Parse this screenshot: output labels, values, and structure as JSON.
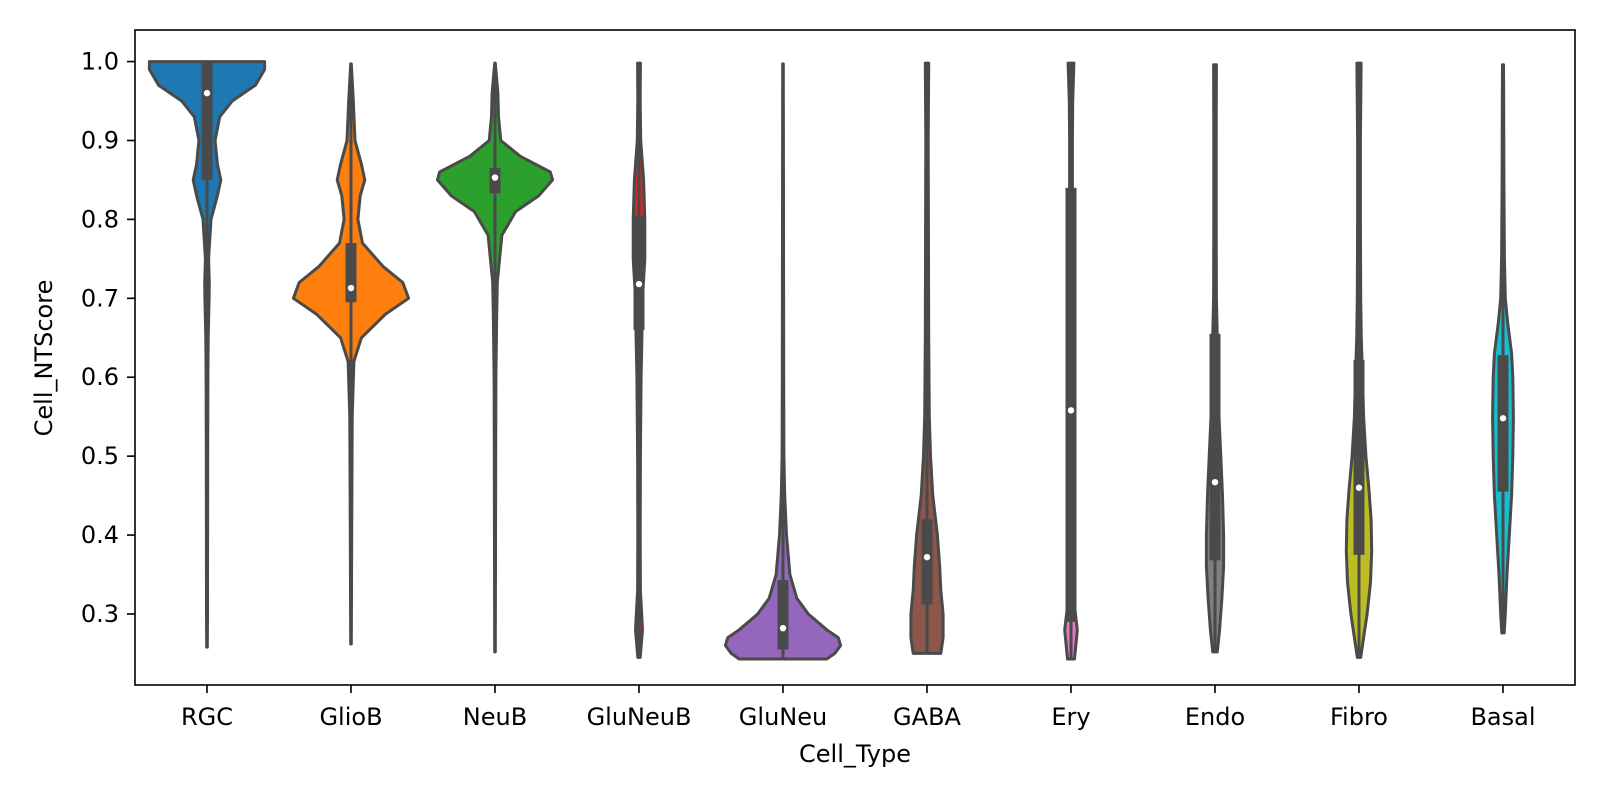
{
  "chart_data": {
    "type": "violin",
    "xlabel": "Cell_Type",
    "ylabel": "Cell_NTScore",
    "ylim": [
      0.21,
      1.04
    ],
    "yticks": [
      "0.3",
      "0.4",
      "0.5",
      "0.6",
      "0.7",
      "0.8",
      "0.9",
      "1.0"
    ],
    "grid": false,
    "edge_color": "#4a4a4a",
    "categories": [
      {
        "name": "RGC",
        "color": "#1f77b4",
        "min": 0.258,
        "max": 1.0,
        "q1": 0.85,
        "median": 0.96,
        "q3": 1.0,
        "density": [
          [
            0.258,
            0.003
          ],
          [
            0.3,
            0.004
          ],
          [
            0.4,
            0.005
          ],
          [
            0.5,
            0.006
          ],
          [
            0.6,
            0.008
          ],
          [
            0.65,
            0.01
          ],
          [
            0.7,
            0.018
          ],
          [
            0.72,
            0.02
          ],
          [
            0.75,
            0.014
          ],
          [
            0.8,
            0.035
          ],
          [
            0.83,
            0.09
          ],
          [
            0.85,
            0.12
          ],
          [
            0.87,
            0.09
          ],
          [
            0.9,
            0.07
          ],
          [
            0.93,
            0.11
          ],
          [
            0.95,
            0.22
          ],
          [
            0.97,
            0.42
          ],
          [
            0.99,
            0.5
          ],
          [
            1.0,
            0.5
          ]
        ]
      },
      {
        "name": "GlioB",
        "color": "#ff7f0e",
        "min": 0.262,
        "max": 0.997,
        "q1": 0.695,
        "median": 0.713,
        "q3": 0.77,
        "density": [
          [
            0.262,
            0.003
          ],
          [
            0.4,
            0.006
          ],
          [
            0.55,
            0.01
          ],
          [
            0.62,
            0.025
          ],
          [
            0.65,
            0.09
          ],
          [
            0.68,
            0.3
          ],
          [
            0.7,
            0.5
          ],
          [
            0.72,
            0.45
          ],
          [
            0.74,
            0.28
          ],
          [
            0.77,
            0.1
          ],
          [
            0.8,
            0.06
          ],
          [
            0.83,
            0.08
          ],
          [
            0.85,
            0.12
          ],
          [
            0.87,
            0.09
          ],
          [
            0.9,
            0.035
          ],
          [
            0.95,
            0.02
          ],
          [
            0.997,
            0.003
          ]
        ]
      },
      {
        "name": "NeuB",
        "color": "#2ca02c",
        "min": 0.252,
        "max": 0.998,
        "q1": 0.833,
        "median": 0.853,
        "q3": 0.865,
        "density": [
          [
            0.252,
            0.003
          ],
          [
            0.5,
            0.006
          ],
          [
            0.6,
            0.008
          ],
          [
            0.68,
            0.015
          ],
          [
            0.72,
            0.02
          ],
          [
            0.78,
            0.06
          ],
          [
            0.81,
            0.18
          ],
          [
            0.83,
            0.38
          ],
          [
            0.85,
            0.5
          ],
          [
            0.86,
            0.48
          ],
          [
            0.88,
            0.22
          ],
          [
            0.9,
            0.05
          ],
          [
            0.93,
            0.03
          ],
          [
            0.96,
            0.025
          ],
          [
            0.998,
            0.003
          ]
        ]
      },
      {
        "name": "GluNeuB",
        "color": "#d62728",
        "min": 0.245,
        "max": 0.998,
        "q1": 0.66,
        "median": 0.718,
        "q3": 0.805,
        "density": [
          [
            0.245,
            0.01
          ],
          [
            0.28,
            0.03
          ],
          [
            0.33,
            0.012
          ],
          [
            0.4,
            0.01
          ],
          [
            0.5,
            0.012
          ],
          [
            0.6,
            0.018
          ],
          [
            0.65,
            0.025
          ],
          [
            0.7,
            0.03
          ],
          [
            0.75,
            0.05
          ],
          [
            0.8,
            0.05
          ],
          [
            0.85,
            0.04
          ],
          [
            0.9,
            0.015
          ],
          [
            0.95,
            0.01
          ],
          [
            0.998,
            0.012
          ]
        ]
      },
      {
        "name": "GluNeu",
        "color": "#9467bd",
        "min": 0.243,
        "max": 0.997,
        "q1": 0.255,
        "median": 0.282,
        "q3": 0.343,
        "density": [
          [
            0.243,
            0.38
          ],
          [
            0.25,
            0.45
          ],
          [
            0.26,
            0.5
          ],
          [
            0.27,
            0.48
          ],
          [
            0.28,
            0.38
          ],
          [
            0.3,
            0.22
          ],
          [
            0.32,
            0.12
          ],
          [
            0.35,
            0.06
          ],
          [
            0.4,
            0.03
          ],
          [
            0.45,
            0.015
          ],
          [
            0.5,
            0.008
          ],
          [
            0.6,
            0.006
          ],
          [
            0.8,
            0.004
          ],
          [
            0.997,
            0.003
          ]
        ]
      },
      {
        "name": "GABA",
        "color": "#8c564b",
        "min": 0.25,
        "max": 0.998,
        "q1": 0.312,
        "median": 0.372,
        "q3": 0.42,
        "density": [
          [
            0.25,
            0.12
          ],
          [
            0.27,
            0.14
          ],
          [
            0.3,
            0.14
          ],
          [
            0.33,
            0.12
          ],
          [
            0.36,
            0.11
          ],
          [
            0.4,
            0.09
          ],
          [
            0.45,
            0.05
          ],
          [
            0.5,
            0.03
          ],
          [
            0.55,
            0.02
          ],
          [
            0.65,
            0.015
          ],
          [
            0.8,
            0.012
          ],
          [
            0.9,
            0.01
          ],
          [
            0.998,
            0.015
          ]
        ]
      },
      {
        "name": "Ery",
        "color": "#e377c2",
        "min": 0.243,
        "max": 0.998,
        "q1": 0.29,
        "median": 0.558,
        "q3": 0.84,
        "density": [
          [
            0.243,
            0.03
          ],
          [
            0.28,
            0.055
          ],
          [
            0.31,
            0.03
          ],
          [
            0.35,
            0.015
          ],
          [
            0.4,
            0.008
          ],
          [
            0.5,
            0.008
          ],
          [
            0.6,
            0.01
          ],
          [
            0.7,
            0.01
          ],
          [
            0.8,
            0.012
          ],
          [
            0.9,
            0.012
          ],
          [
            0.95,
            0.015
          ],
          [
            0.998,
            0.025
          ]
        ]
      },
      {
        "name": "Endo",
        "color": "#7f7f7f",
        "min": 0.252,
        "max": 0.996,
        "q1": 0.368,
        "median": 0.467,
        "q3": 0.655,
        "density": [
          [
            0.252,
            0.02
          ],
          [
            0.28,
            0.04
          ],
          [
            0.32,
            0.06
          ],
          [
            0.36,
            0.075
          ],
          [
            0.4,
            0.075
          ],
          [
            0.45,
            0.065
          ],
          [
            0.5,
            0.05
          ],
          [
            0.55,
            0.035
          ],
          [
            0.6,
            0.025
          ],
          [
            0.65,
            0.02
          ],
          [
            0.7,
            0.012
          ],
          [
            0.8,
            0.01
          ],
          [
            0.9,
            0.01
          ],
          [
            0.996,
            0.012
          ]
        ]
      },
      {
        "name": "Fibro",
        "color": "#bcbd22",
        "min": 0.245,
        "max": 0.998,
        "q1": 0.375,
        "median": 0.46,
        "q3": 0.622,
        "density": [
          [
            0.245,
            0.015
          ],
          [
            0.27,
            0.04
          ],
          [
            0.3,
            0.07
          ],
          [
            0.34,
            0.1
          ],
          [
            0.38,
            0.11
          ],
          [
            0.42,
            0.105
          ],
          [
            0.46,
            0.085
          ],
          [
            0.5,
            0.06
          ],
          [
            0.55,
            0.04
          ],
          [
            0.6,
            0.03
          ],
          [
            0.65,
            0.02
          ],
          [
            0.7,
            0.015
          ],
          [
            0.8,
            0.012
          ],
          [
            0.9,
            0.012
          ],
          [
            0.998,
            0.018
          ]
        ]
      },
      {
        "name": "Basal",
        "color": "#17becf",
        "min": 0.276,
        "max": 0.996,
        "q1": 0.455,
        "median": 0.548,
        "q3": 0.628,
        "density": [
          [
            0.276,
            0.01
          ],
          [
            0.3,
            0.02
          ],
          [
            0.35,
            0.035
          ],
          [
            0.4,
            0.055
          ],
          [
            0.45,
            0.075
          ],
          [
            0.5,
            0.085
          ],
          [
            0.55,
            0.09
          ],
          [
            0.6,
            0.085
          ],
          [
            0.63,
            0.075
          ],
          [
            0.67,
            0.04
          ],
          [
            0.7,
            0.02
          ],
          [
            0.75,
            0.012
          ],
          [
            0.85,
            0.008
          ],
          [
            0.95,
            0.006
          ],
          [
            0.996,
            0.004
          ]
        ]
      }
    ]
  }
}
